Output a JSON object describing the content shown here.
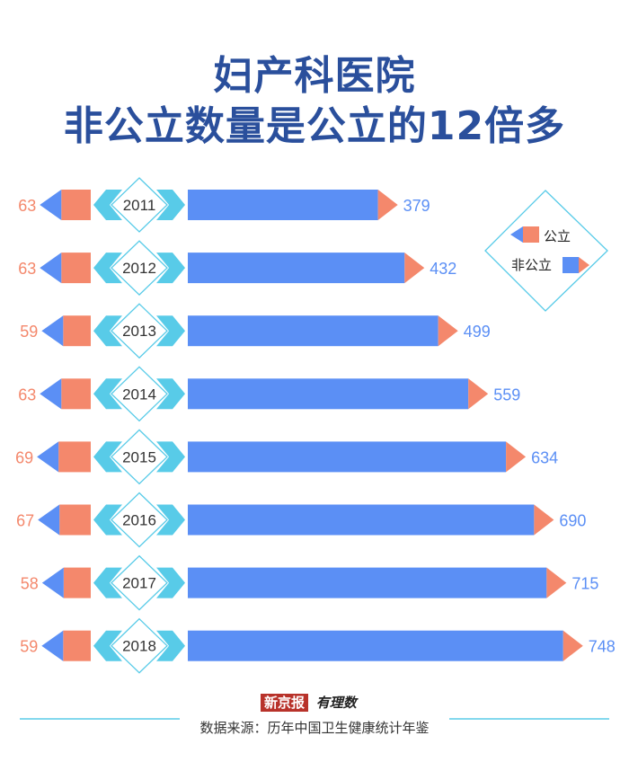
{
  "title_line1": "妇产科医院",
  "title_line2": "非公立数量是公立的12倍多",
  "chart_data": {
    "type": "bar",
    "categories": [
      "2011",
      "2012",
      "2013",
      "2014",
      "2015",
      "2016",
      "2017",
      "2018"
    ],
    "series": [
      {
        "name": "公立",
        "values": [
          63,
          63,
          59,
          63,
          69,
          67,
          58,
          59
        ],
        "color": "#f4886c"
      },
      {
        "name": "非公立",
        "values": [
          379,
          432,
          499,
          559,
          634,
          690,
          715,
          748
        ],
        "color": "#5b8ff5"
      }
    ],
    "legend_position": "right",
    "orientation": "horizontal"
  },
  "legend": {
    "public": "公立",
    "private": "非公立"
  },
  "colors": {
    "title": "#2a4f9c",
    "public": "#f4886c",
    "private": "#5b8ff5",
    "private_arrow": "#f4886c",
    "public_arrow": "#5b8ff5",
    "year_diamond": "#58cbe8",
    "divider": "#58cbe8"
  },
  "logo": {
    "publisher": "新京报",
    "brand": "有理数"
  },
  "source": "数据来源：历年中国卫生健康统计年鉴"
}
